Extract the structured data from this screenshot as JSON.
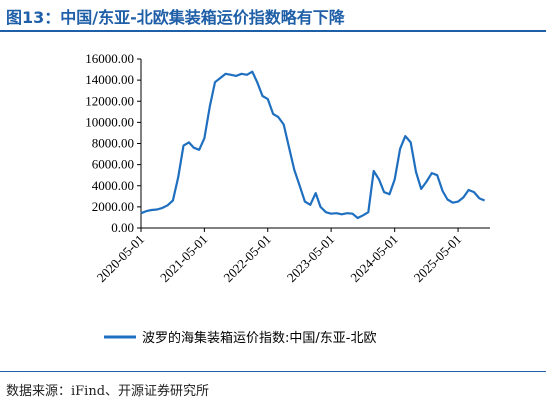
{
  "title": "图13：中国/东亚-北欧集装箱运价指数略有下降",
  "source": "数据来源：iFind、开源证券研究所",
  "colors": {
    "accent": "#1f5fa8",
    "series": "#1f6fc0"
  },
  "chart_data": {
    "type": "line",
    "ylim": [
      0,
      16000
    ],
    "y_ticks": [
      "0.00",
      "2000.00",
      "4000.00",
      "6000.00",
      "8000.00",
      "10000.00",
      "12000.00",
      "14000.00",
      "16000.00"
    ],
    "y_tick_values": [
      0,
      2000,
      4000,
      6000,
      8000,
      10000,
      12000,
      14000,
      16000
    ],
    "x_ticks": [
      "2020-05-01",
      "2021-05-01",
      "2022-05-01",
      "2023-05-01",
      "2024-05-01",
      "2025-05-01"
    ],
    "xlim": [
      "2020-05-01",
      "2025-11-01"
    ],
    "grid": false,
    "legend_position": "bottom",
    "series": [
      {
        "name": "波罗的海集装箱运价指数:中国/东亚-北欧",
        "points": [
          [
            "2020-05-01",
            1400
          ],
          [
            "2020-06-01",
            1600
          ],
          [
            "2020-07-01",
            1700
          ],
          [
            "2020-08-01",
            1750
          ],
          [
            "2020-09-01",
            1900
          ],
          [
            "2020-10-01",
            2150
          ],
          [
            "2020-11-01",
            2600
          ],
          [
            "2020-12-01",
            4800
          ],
          [
            "2021-01-01",
            7800
          ],
          [
            "2021-02-01",
            8100
          ],
          [
            "2021-03-01",
            7600
          ],
          [
            "2021-04-01",
            7400
          ],
          [
            "2021-05-01",
            8500
          ],
          [
            "2021-06-01",
            11500
          ],
          [
            "2021-07-01",
            13800
          ],
          [
            "2021-08-01",
            14200
          ],
          [
            "2021-09-01",
            14600
          ],
          [
            "2021-10-01",
            14500
          ],
          [
            "2021-11-01",
            14400
          ],
          [
            "2021-12-01",
            14600
          ],
          [
            "2022-01-01",
            14500
          ],
          [
            "2022-02-01",
            14800
          ],
          [
            "2022-03-01",
            13800
          ],
          [
            "2022-04-01",
            12500
          ],
          [
            "2022-05-01",
            12200
          ],
          [
            "2022-06-01",
            10800
          ],
          [
            "2022-07-01",
            10500
          ],
          [
            "2022-08-01",
            9800
          ],
          [
            "2022-09-01",
            7600
          ],
          [
            "2022-10-01",
            5500
          ],
          [
            "2022-11-01",
            4000
          ],
          [
            "2022-12-01",
            2500
          ],
          [
            "2023-01-01",
            2200
          ],
          [
            "2023-02-01",
            3300
          ],
          [
            "2023-03-01",
            2000
          ],
          [
            "2023-04-01",
            1500
          ],
          [
            "2023-05-01",
            1350
          ],
          [
            "2023-06-01",
            1400
          ],
          [
            "2023-07-01",
            1300
          ],
          [
            "2023-08-01",
            1400
          ],
          [
            "2023-09-01",
            1350
          ],
          [
            "2023-10-01",
            950
          ],
          [
            "2023-11-01",
            1200
          ],
          [
            "2023-12-01",
            1500
          ],
          [
            "2024-01-01",
            5400
          ],
          [
            "2024-02-01",
            4600
          ],
          [
            "2024-03-01",
            3400
          ],
          [
            "2024-04-01",
            3200
          ],
          [
            "2024-05-01",
            4600
          ],
          [
            "2024-06-01",
            7500
          ],
          [
            "2024-07-01",
            8700
          ],
          [
            "2024-08-01",
            8100
          ],
          [
            "2024-09-01",
            5300
          ],
          [
            "2024-10-01",
            3700
          ],
          [
            "2024-11-01",
            4400
          ],
          [
            "2024-12-01",
            5200
          ],
          [
            "2025-01-01",
            5000
          ],
          [
            "2025-02-01",
            3500
          ],
          [
            "2025-03-01",
            2700
          ],
          [
            "2025-04-01",
            2400
          ],
          [
            "2025-05-01",
            2500
          ],
          [
            "2025-06-01",
            2900
          ],
          [
            "2025-07-01",
            3600
          ],
          [
            "2025-08-01",
            3400
          ],
          [
            "2025-09-01",
            2800
          ],
          [
            "2025-10-01",
            2600
          ]
        ]
      }
    ]
  }
}
